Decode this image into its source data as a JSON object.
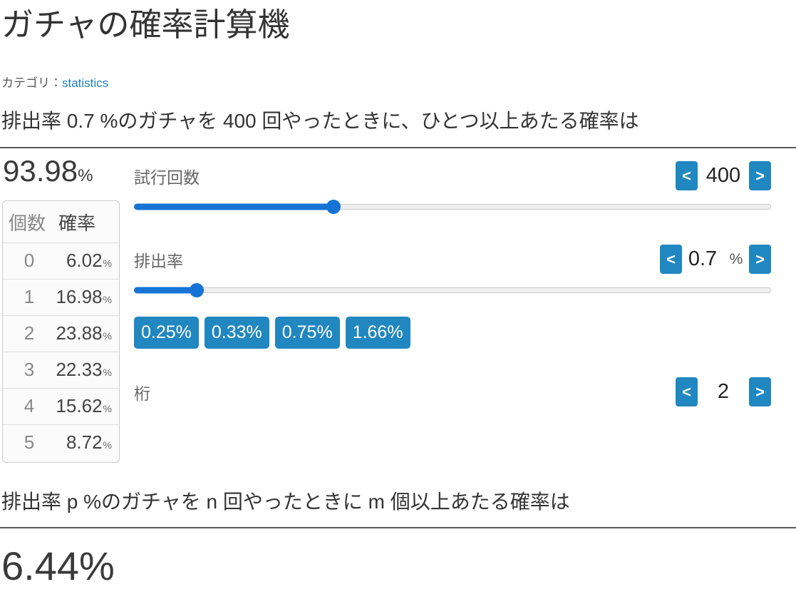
{
  "header": {
    "title": "ガチャの確率計算機",
    "category_label": "カテゴリ：",
    "category_link": "statistics"
  },
  "question1": "排出率 0.7 %のガチャを 400 回やったときに、ひとつ以上あたる確率は",
  "result1": {
    "value": "93.98",
    "unit": "%"
  },
  "prob_table": {
    "headers": {
      "count": "個数",
      "prob": "確率"
    },
    "rows": [
      {
        "count": "0",
        "prob": "6.02",
        "unit": "%"
      },
      {
        "count": "1",
        "prob": "16.98",
        "unit": "%"
      },
      {
        "count": "2",
        "prob": "23.88",
        "unit": "%"
      },
      {
        "count": "3",
        "prob": "22.33",
        "unit": "%"
      },
      {
        "count": "4",
        "prob": "15.62",
        "unit": "%"
      },
      {
        "count": "5",
        "prob": "8.72",
        "unit": "%"
      }
    ]
  },
  "controls": {
    "trials": {
      "label": "試行回数",
      "value": "400",
      "dec_label": "<",
      "inc_label": ">",
      "slider_percent": 31.3
    },
    "rate": {
      "label": "排出率",
      "value": "0.7",
      "unit": "%",
      "dec_label": "<",
      "inc_label": ">",
      "slider_percent": 9.8
    },
    "rate_presets": [
      "0.25%",
      "0.33%",
      "0.75%",
      "1.66%"
    ],
    "digits": {
      "label": "桁",
      "value": "2",
      "dec_label": "<",
      "inc_label": ">"
    }
  },
  "question2": "排出率 p %のガチャを n 回やったときに m 個以上あたる確率は",
  "result2": "6.44%",
  "colors": {
    "accent_button": "#2187c0",
    "slider_fill": "#1574d4",
    "link": "#1f7fc0",
    "rule": "#5a5a5a"
  }
}
